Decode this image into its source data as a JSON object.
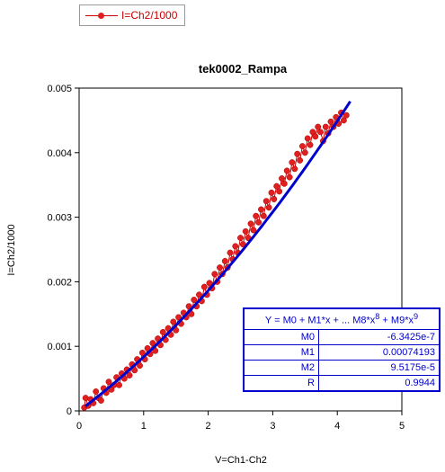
{
  "legend": {
    "label": "I=Ch2/1000"
  },
  "chart_data": {
    "type": "scatter",
    "title": "tek0002_Rampa",
    "xlabel": "V=Ch1-Ch2",
    "ylabel": "I=Ch2/1000",
    "xlim": [
      0,
      5
    ],
    "ylim": [
      0,
      0.005
    ],
    "x_ticks": [
      "0",
      "1",
      "2",
      "3",
      "4",
      "5"
    ],
    "y_ticks": [
      "0",
      "0.001",
      "0.002",
      "0.003",
      "0.004",
      "0.005"
    ],
    "series": [
      {
        "name": "I=Ch2/1000",
        "color": "#e02020",
        "line_color": "#cc0000",
        "style": "line+markers",
        "points": [
          [
            0.08,
            5e-05
          ],
          [
            0.1,
            0.0002
          ],
          [
            0.14,
            8e-05
          ],
          [
            0.18,
            0.00018
          ],
          [
            0.22,
            0.00012
          ],
          [
            0.26,
            0.0003
          ],
          [
            0.3,
            0.0002
          ],
          [
            0.34,
            0.00016
          ],
          [
            0.38,
            0.00035
          ],
          [
            0.42,
            0.00028
          ],
          [
            0.46,
            0.00045
          ],
          [
            0.5,
            0.00033
          ],
          [
            0.54,
            0.0004
          ],
          [
            0.58,
            0.00052
          ],
          [
            0.62,
            0.0004
          ],
          [
            0.66,
            0.00058
          ],
          [
            0.7,
            0.0005
          ],
          [
            0.74,
            0.00064
          ],
          [
            0.78,
            0.00055
          ],
          [
            0.82,
            0.00072
          ],
          [
            0.86,
            0.00063
          ],
          [
            0.9,
            0.0008
          ],
          [
            0.94,
            0.0007
          ],
          [
            0.98,
            0.0009
          ],
          [
            1.02,
            0.0008
          ],
          [
            1.06,
            0.00097
          ],
          [
            1.1,
            0.00088
          ],
          [
            1.14,
            0.00105
          ],
          [
            1.18,
            0.00093
          ],
          [
            1.22,
            0.00112
          ],
          [
            1.26,
            0.00102
          ],
          [
            1.3,
            0.00122
          ],
          [
            1.34,
            0.0011
          ],
          [
            1.38,
            0.00128
          ],
          [
            1.42,
            0.00118
          ],
          [
            1.46,
            0.00138
          ],
          [
            1.5,
            0.00125
          ],
          [
            1.54,
            0.00145
          ],
          [
            1.58,
            0.00135
          ],
          [
            1.62,
            0.00152
          ],
          [
            1.66,
            0.00145
          ],
          [
            1.7,
            0.00162
          ],
          [
            1.74,
            0.0015
          ],
          [
            1.78,
            0.00172
          ],
          [
            1.82,
            0.00162
          ],
          [
            1.86,
            0.0018
          ],
          [
            1.9,
            0.0017
          ],
          [
            1.94,
            0.00192
          ],
          [
            1.98,
            0.0018
          ],
          [
            2.02,
            0.00198
          ],
          [
            2.06,
            0.0019
          ],
          [
            2.1,
            0.00212
          ],
          [
            2.14,
            0.002
          ],
          [
            2.18,
            0.00222
          ],
          [
            2.22,
            0.00212
          ],
          [
            2.26,
            0.00232
          ],
          [
            2.3,
            0.00222
          ],
          [
            2.34,
            0.00245
          ],
          [
            2.38,
            0.00235
          ],
          [
            2.42,
            0.00255
          ],
          [
            2.46,
            0.00245
          ],
          [
            2.5,
            0.00268
          ],
          [
            2.54,
            0.00258
          ],
          [
            2.58,
            0.00278
          ],
          [
            2.62,
            0.00268
          ],
          [
            2.66,
            0.0029
          ],
          [
            2.7,
            0.0028
          ],
          [
            2.74,
            0.00302
          ],
          [
            2.78,
            0.00292
          ],
          [
            2.82,
            0.00312
          ],
          [
            2.86,
            0.00302
          ],
          [
            2.9,
            0.00325
          ],
          [
            2.94,
            0.00315
          ],
          [
            2.98,
            0.00338
          ],
          [
            3.02,
            0.00328
          ],
          [
            3.06,
            0.00348
          ],
          [
            3.1,
            0.0034
          ],
          [
            3.14,
            0.0036
          ],
          [
            3.18,
            0.00352
          ],
          [
            3.22,
            0.00372
          ],
          [
            3.26,
            0.00362
          ],
          [
            3.3,
            0.00385
          ],
          [
            3.34,
            0.00375
          ],
          [
            3.38,
            0.00398
          ],
          [
            3.42,
            0.00388
          ],
          [
            3.46,
            0.0041
          ],
          [
            3.5,
            0.004
          ],
          [
            3.54,
            0.00422
          ],
          [
            3.58,
            0.00412
          ],
          [
            3.62,
            0.00432
          ],
          [
            3.66,
            0.00425
          ],
          [
            3.7,
            0.0044
          ],
          [
            3.74,
            0.00432
          ],
          [
            3.78,
            0.00418
          ],
          [
            3.82,
            0.0044
          ],
          [
            3.86,
            0.0043
          ],
          [
            3.9,
            0.00448
          ],
          [
            3.94,
            0.0044
          ],
          [
            3.98,
            0.00455
          ],
          [
            4.02,
            0.00445
          ],
          [
            4.06,
            0.00462
          ],
          [
            4.1,
            0.0045
          ],
          [
            4.14,
            0.00458
          ]
        ]
      }
    ],
    "fit": {
      "color": "#0000cc",
      "M0": -6.3425e-07,
      "M1": 0.00074193,
      "M2": 9.5175e-05,
      "x_range": [
        0.1,
        4.2
      ]
    },
    "grid": false
  },
  "fit_table": {
    "equation": "Y = M0 + M1*x + ... M8*x",
    "eq_exp1": "8",
    "eq_mid": " + M9*x",
    "eq_exp2": "9",
    "rows": [
      {
        "name": "M0",
        "value": "-6.3425e-7"
      },
      {
        "name": "M1",
        "value": "0.00074193"
      },
      {
        "name": "M2",
        "value": "9.5175e-5"
      },
      {
        "name": "R",
        "value": "0.9944"
      }
    ]
  }
}
